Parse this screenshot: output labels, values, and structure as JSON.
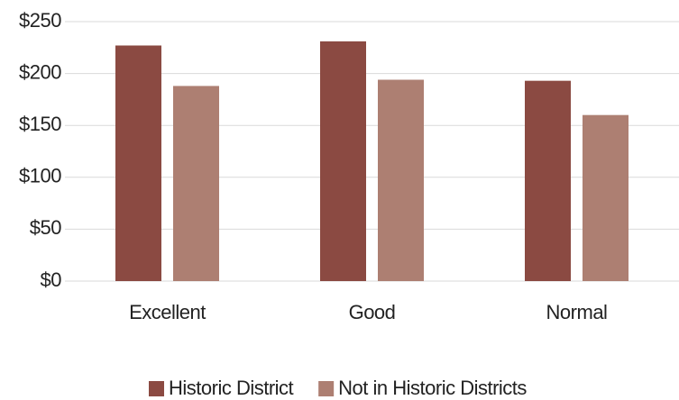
{
  "chart_data": {
    "type": "bar",
    "categories": [
      "Excellent",
      "Good",
      "Normal"
    ],
    "series": [
      {
        "name": "Historic District",
        "color": "#8b4a42",
        "values": [
          227,
          231,
          193
        ]
      },
      {
        "name": "Not in Historic Districts",
        "color": "#ad7f72",
        "values": [
          188,
          194,
          160
        ]
      }
    ],
    "ylim": [
      0,
      250
    ],
    "yticks": [
      {
        "value": 0,
        "label": "$0"
      },
      {
        "value": 50,
        "label": "$50"
      },
      {
        "value": 100,
        "label": "$100"
      },
      {
        "value": 150,
        "label": "$150"
      },
      {
        "value": 200,
        "label": "$200"
      },
      {
        "value": 250,
        "label": "$250"
      }
    ],
    "grid": true,
    "legend": "bottom"
  }
}
